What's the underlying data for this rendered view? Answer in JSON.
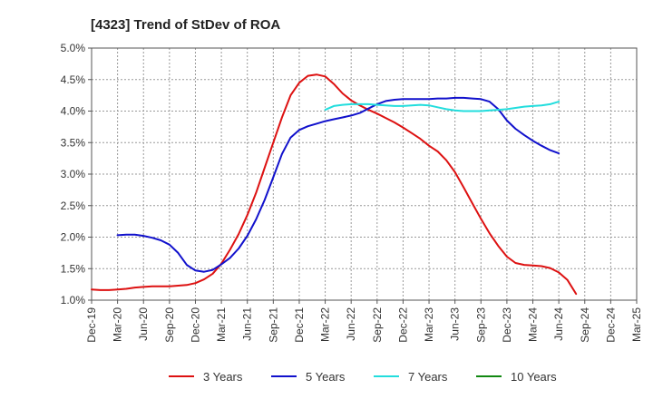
{
  "chart_data": {
    "type": "line",
    "title": "[4323]  Trend of StDev of ROA",
    "xlabel": "",
    "ylabel": "",
    "x_ticks": [
      "Dec-19",
      "Mar-20",
      "Jun-20",
      "Sep-20",
      "Dec-20",
      "Mar-21",
      "Jun-21",
      "Sep-21",
      "Dec-21",
      "Mar-22",
      "Jun-22",
      "Sep-22",
      "Dec-22",
      "Mar-23",
      "Jun-23",
      "Sep-23",
      "Dec-23",
      "Mar-24",
      "Jun-24",
      "Sep-24",
      "Dec-24",
      "Mar-25"
    ],
    "y_ticks": [
      "1.0%",
      "1.5%",
      "2.0%",
      "2.5%",
      "3.0%",
      "3.5%",
      "4.0%",
      "4.5%",
      "5.0%"
    ],
    "ylim": [
      1.0,
      5.0
    ],
    "grid": true,
    "legend_position": "bottom",
    "series": [
      {
        "name": "3 Years",
        "color": "#dd1111",
        "points": [
          [
            "Dec-19",
            1.17
          ],
          [
            "Jan-20",
            1.16
          ],
          [
            "Feb-20",
            1.16
          ],
          [
            "Mar-20",
            1.17
          ],
          [
            "Apr-20",
            1.18
          ],
          [
            "May-20",
            1.2
          ],
          [
            "Jun-20",
            1.21
          ],
          [
            "Jul-20",
            1.22
          ],
          [
            "Aug-20",
            1.22
          ],
          [
            "Sep-20",
            1.22
          ],
          [
            "Oct-20",
            1.23
          ],
          [
            "Nov-20",
            1.24
          ],
          [
            "Dec-20",
            1.27
          ],
          [
            "Jan-21",
            1.33
          ],
          [
            "Feb-21",
            1.42
          ],
          [
            "Mar-21",
            1.58
          ],
          [
            "Apr-21",
            1.8
          ],
          [
            "May-21",
            2.05
          ],
          [
            "Jun-21",
            2.35
          ],
          [
            "Jul-21",
            2.7
          ],
          [
            "Aug-21",
            3.1
          ],
          [
            "Sep-21",
            3.5
          ],
          [
            "Oct-21",
            3.9
          ],
          [
            "Nov-21",
            4.25
          ],
          [
            "Dec-21",
            4.45
          ],
          [
            "Jan-22",
            4.56
          ],
          [
            "Feb-22",
            4.58
          ],
          [
            "Mar-22",
            4.55
          ],
          [
            "Apr-22",
            4.43
          ],
          [
            "May-22",
            4.28
          ],
          [
            "Jun-22",
            4.17
          ],
          [
            "Jul-22",
            4.09
          ],
          [
            "Aug-22",
            4.02
          ],
          [
            "Sep-22",
            3.96
          ],
          [
            "Oct-22",
            3.89
          ],
          [
            "Nov-22",
            3.82
          ],
          [
            "Dec-22",
            3.74
          ],
          [
            "Jan-23",
            3.65
          ],
          [
            "Feb-23",
            3.56
          ],
          [
            "Mar-23",
            3.45
          ],
          [
            "Apr-23",
            3.36
          ],
          [
            "May-23",
            3.22
          ],
          [
            "Jun-23",
            3.03
          ],
          [
            "Jul-23",
            2.79
          ],
          [
            "Aug-23",
            2.54
          ],
          [
            "Sep-23",
            2.29
          ],
          [
            "Oct-23",
            2.06
          ],
          [
            "Nov-23",
            1.86
          ],
          [
            "Dec-23",
            1.69
          ],
          [
            "Jan-24",
            1.59
          ],
          [
            "Feb-24",
            1.56
          ],
          [
            "Mar-24",
            1.55
          ],
          [
            "Apr-24",
            1.54
          ],
          [
            "May-24",
            1.51
          ],
          [
            "Jun-24",
            1.44
          ],
          [
            "Jul-24",
            1.32
          ],
          [
            "Aug-24",
            1.1
          ]
        ]
      },
      {
        "name": "5 Years",
        "color": "#1111cc",
        "points": [
          [
            "Mar-20",
            2.03
          ],
          [
            "Apr-20",
            2.04
          ],
          [
            "May-20",
            2.04
          ],
          [
            "Jun-20",
            2.02
          ],
          [
            "Jul-20",
            1.99
          ],
          [
            "Aug-20",
            1.95
          ],
          [
            "Sep-20",
            1.88
          ],
          [
            "Oct-20",
            1.75
          ],
          [
            "Nov-20",
            1.56
          ],
          [
            "Dec-20",
            1.47
          ],
          [
            "Jan-21",
            1.45
          ],
          [
            "Feb-21",
            1.48
          ],
          [
            "Mar-21",
            1.57
          ],
          [
            "Apr-21",
            1.67
          ],
          [
            "May-21",
            1.82
          ],
          [
            "Jun-21",
            2.02
          ],
          [
            "Jul-21",
            2.28
          ],
          [
            "Aug-21",
            2.59
          ],
          [
            "Sep-21",
            2.95
          ],
          [
            "Oct-21",
            3.32
          ],
          [
            "Nov-21",
            3.58
          ],
          [
            "Dec-21",
            3.7
          ],
          [
            "Jan-22",
            3.76
          ],
          [
            "Feb-22",
            3.8
          ],
          [
            "Mar-22",
            3.84
          ],
          [
            "Apr-22",
            3.87
          ],
          [
            "May-22",
            3.9
          ],
          [
            "Jun-22",
            3.93
          ],
          [
            "Jul-22",
            3.97
          ],
          [
            "Aug-22",
            4.04
          ],
          [
            "Sep-22",
            4.11
          ],
          [
            "Oct-22",
            4.16
          ],
          [
            "Nov-22",
            4.18
          ],
          [
            "Dec-22",
            4.19
          ],
          [
            "Jan-23",
            4.19
          ],
          [
            "Feb-23",
            4.19
          ],
          [
            "Mar-23",
            4.19
          ],
          [
            "Apr-23",
            4.2
          ],
          [
            "May-23",
            4.2
          ],
          [
            "Jun-23",
            4.21
          ],
          [
            "Jul-23",
            4.21
          ],
          [
            "Aug-23",
            4.2
          ],
          [
            "Sep-23",
            4.19
          ],
          [
            "Oct-23",
            4.15
          ],
          [
            "Nov-23",
            4.03
          ],
          [
            "Dec-23",
            3.85
          ],
          [
            "Jan-24",
            3.72
          ],
          [
            "Feb-24",
            3.62
          ],
          [
            "Mar-24",
            3.53
          ],
          [
            "Apr-24",
            3.45
          ],
          [
            "May-24",
            3.38
          ],
          [
            "Jun-24",
            3.33
          ]
        ]
      },
      {
        "name": "7 Years",
        "color": "#22dddd",
        "points": [
          [
            "Mar-22",
            4.02
          ],
          [
            "Apr-22",
            4.08
          ],
          [
            "May-22",
            4.1
          ],
          [
            "Jun-22",
            4.11
          ],
          [
            "Jul-22",
            4.11
          ],
          [
            "Aug-22",
            4.11
          ],
          [
            "Sep-22",
            4.1
          ],
          [
            "Oct-22",
            4.09
          ],
          [
            "Nov-22",
            4.08
          ],
          [
            "Dec-22",
            4.08
          ],
          [
            "Jan-23",
            4.09
          ],
          [
            "Feb-23",
            4.1
          ],
          [
            "Mar-23",
            4.09
          ],
          [
            "Apr-23",
            4.06
          ],
          [
            "May-23",
            4.03
          ],
          [
            "Jun-23",
            4.01
          ],
          [
            "Jul-23",
            4.0
          ],
          [
            "Aug-23",
            4.0
          ],
          [
            "Sep-23",
            4.0
          ],
          [
            "Oct-23",
            4.01
          ],
          [
            "Nov-23",
            4.02
          ],
          [
            "Dec-23",
            4.03
          ],
          [
            "Jan-24",
            4.05
          ],
          [
            "Feb-24",
            4.07
          ],
          [
            "Mar-24",
            4.08
          ],
          [
            "Apr-24",
            4.09
          ],
          [
            "May-24",
            4.11
          ],
          [
            "Jun-24",
            4.15
          ]
        ]
      },
      {
        "name": "10 Years",
        "color": "#118811",
        "points": []
      }
    ]
  }
}
